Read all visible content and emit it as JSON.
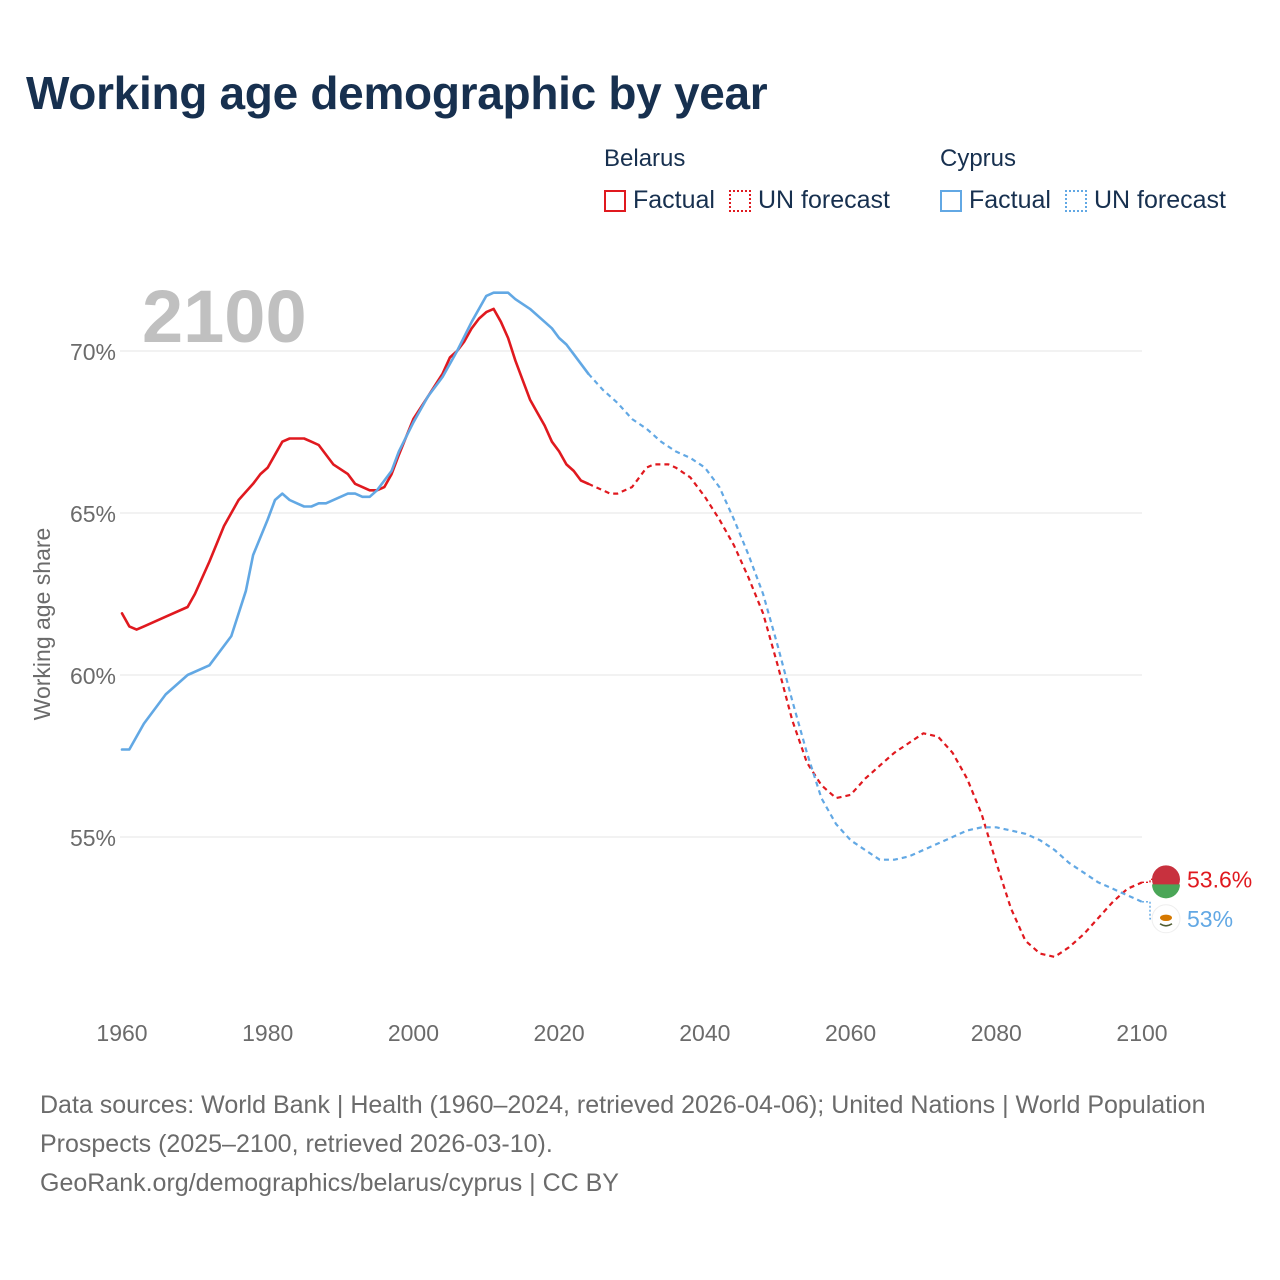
{
  "title": "Working age demographic by year",
  "legend": {
    "groups": [
      {
        "name": "Belarus",
        "color": "#e0191f",
        "items": [
          {
            "label": "Factual",
            "style": "solid"
          },
          {
            "label": "UN forecast",
            "style": "dotted"
          }
        ]
      },
      {
        "name": "Cyprus",
        "color": "#62a8e4",
        "items": [
          {
            "label": "Factual",
            "style": "solid"
          },
          {
            "label": "UN forecast",
            "style": "dotted"
          }
        ]
      }
    ]
  },
  "year_watermark": "2100",
  "footer": {
    "sources": "Data sources: World Bank | Health (1960–2024, retrieved 2026-04-06); United Nations | World Population Prospects (2025–2100, retrieved 2026-03-10).",
    "link": "GeoRank.org/demographics/belarus/cyprus | CC BY"
  },
  "chart_data": {
    "type": "line",
    "title": "Working age demographic by year",
    "xlabel": "",
    "ylabel": "Working age share",
    "xlim": [
      1960,
      2100
    ],
    "ylim": [
      50.5,
      72
    ],
    "x_ticks": [
      1960,
      1980,
      2000,
      2020,
      2040,
      2060,
      2080,
      2100
    ],
    "y_ticks": [
      {
        "value": 55,
        "label": "55%"
      },
      {
        "value": 60,
        "label": "60%"
      },
      {
        "value": 65,
        "label": "65%"
      },
      {
        "value": 70,
        "label": "70%"
      }
    ],
    "grid": true,
    "factual_until": 2024,
    "series": [
      {
        "name": "Belarus",
        "color": "#e0191f",
        "end_label": "53.6%",
        "flag_colors": [
          "#c8313e",
          "#4aa657"
        ],
        "points": [
          [
            1960,
            61.9
          ],
          [
            1961,
            61.5
          ],
          [
            1962,
            61.4
          ],
          [
            1963,
            61.5
          ],
          [
            1966,
            61.8
          ],
          [
            1969,
            62.1
          ],
          [
            1970,
            62.5
          ],
          [
            1972,
            63.5
          ],
          [
            1974,
            64.6
          ],
          [
            1976,
            65.4
          ],
          [
            1978,
            65.9
          ],
          [
            1979,
            66.2
          ],
          [
            1980,
            66.4
          ],
          [
            1981,
            66.8
          ],
          [
            1982,
            67.2
          ],
          [
            1983,
            67.3
          ],
          [
            1985,
            67.3
          ],
          [
            1986,
            67.2
          ],
          [
            1987,
            67.1
          ],
          [
            1989,
            66.5
          ],
          [
            1991,
            66.2
          ],
          [
            1992,
            65.9
          ],
          [
            1994,
            65.7
          ],
          [
            1995,
            65.7
          ],
          [
            1996,
            65.8
          ],
          [
            1997,
            66.2
          ],
          [
            1998,
            66.8
          ],
          [
            2000,
            67.9
          ],
          [
            2002,
            68.6
          ],
          [
            2004,
            69.3
          ],
          [
            2005,
            69.8
          ],
          [
            2006,
            70.0
          ],
          [
            2007,
            70.3
          ],
          [
            2008,
            70.7
          ],
          [
            2009,
            71.0
          ],
          [
            2010,
            71.2
          ],
          [
            2011,
            71.3
          ],
          [
            2012,
            70.9
          ],
          [
            2013,
            70.4
          ],
          [
            2014,
            69.7
          ],
          [
            2015,
            69.1
          ],
          [
            2016,
            68.5
          ],
          [
            2017,
            68.1
          ],
          [
            2018,
            67.7
          ],
          [
            2019,
            67.2
          ],
          [
            2020,
            66.9
          ],
          [
            2021,
            66.5
          ],
          [
            2022,
            66.3
          ],
          [
            2023,
            66.0
          ],
          [
            2024,
            65.9
          ],
          [
            2025,
            65.8
          ],
          [
            2026,
            65.7
          ],
          [
            2027,
            65.6
          ],
          [
            2028,
            65.6
          ],
          [
            2030,
            65.8
          ],
          [
            2031,
            66.1
          ],
          [
            2032,
            66.4
          ],
          [
            2033,
            66.5
          ],
          [
            2035,
            66.5
          ],
          [
            2036,
            66.4
          ],
          [
            2038,
            66.1
          ],
          [
            2040,
            65.5
          ],
          [
            2042,
            64.8
          ],
          [
            2044,
            64.0
          ],
          [
            2046,
            63.0
          ],
          [
            2048,
            61.9
          ],
          [
            2050,
            60.3
          ],
          [
            2052,
            58.6
          ],
          [
            2054,
            57.3
          ],
          [
            2056,
            56.6
          ],
          [
            2058,
            56.2
          ],
          [
            2060,
            56.3
          ],
          [
            2062,
            56.8
          ],
          [
            2064,
            57.2
          ],
          [
            2066,
            57.6
          ],
          [
            2068,
            57.9
          ],
          [
            2070,
            58.2
          ],
          [
            2072,
            58.1
          ],
          [
            2074,
            57.6
          ],
          [
            2076,
            56.8
          ],
          [
            2078,
            55.7
          ],
          [
            2080,
            54.2
          ],
          [
            2082,
            52.8
          ],
          [
            2084,
            51.8
          ],
          [
            2086,
            51.4
          ],
          [
            2088,
            51.3
          ],
          [
            2090,
            51.6
          ],
          [
            2092,
            52.0
          ],
          [
            2094,
            52.5
          ],
          [
            2096,
            53.0
          ],
          [
            2098,
            53.4
          ],
          [
            2100,
            53.6
          ]
        ]
      },
      {
        "name": "Cyprus",
        "color": "#62a8e4",
        "end_label": "53%",
        "flag_colors": [
          "#ffffff",
          "#d57800",
          "#4e5b31"
        ],
        "points": [
          [
            1960,
            57.7
          ],
          [
            1961,
            57.7
          ],
          [
            1963,
            58.5
          ],
          [
            1966,
            59.4
          ],
          [
            1969,
            60.0
          ],
          [
            1972,
            60.3
          ],
          [
            1975,
            61.2
          ],
          [
            1977,
            62.6
          ],
          [
            1978,
            63.7
          ],
          [
            1980,
            64.8
          ],
          [
            1981,
            65.4
          ],
          [
            1982,
            65.6
          ],
          [
            1983,
            65.4
          ],
          [
            1984,
            65.3
          ],
          [
            1985,
            65.2
          ],
          [
            1986,
            65.2
          ],
          [
            1987,
            65.3
          ],
          [
            1988,
            65.3
          ],
          [
            1990,
            65.5
          ],
          [
            1991,
            65.6
          ],
          [
            1992,
            65.6
          ],
          [
            1993,
            65.5
          ],
          [
            1994,
            65.5
          ],
          [
            1995,
            65.7
          ],
          [
            1997,
            66.3
          ],
          [
            1998,
            66.9
          ],
          [
            2000,
            67.8
          ],
          [
            2002,
            68.6
          ],
          [
            2004,
            69.2
          ],
          [
            2006,
            70.0
          ],
          [
            2008,
            70.9
          ],
          [
            2010,
            71.7
          ],
          [
            2011,
            71.8
          ],
          [
            2013,
            71.8
          ],
          [
            2014,
            71.6
          ],
          [
            2016,
            71.3
          ],
          [
            2018,
            70.9
          ],
          [
            2019,
            70.7
          ],
          [
            2020,
            70.4
          ],
          [
            2021,
            70.2
          ],
          [
            2022,
            69.9
          ],
          [
            2024,
            69.3
          ],
          [
            2026,
            68.8
          ],
          [
            2028,
            68.4
          ],
          [
            2030,
            67.9
          ],
          [
            2032,
            67.6
          ],
          [
            2034,
            67.2
          ],
          [
            2036,
            66.9
          ],
          [
            2038,
            66.7
          ],
          [
            2040,
            66.4
          ],
          [
            2042,
            65.8
          ],
          [
            2044,
            64.8
          ],
          [
            2046,
            63.7
          ],
          [
            2048,
            62.5
          ],
          [
            2050,
            60.9
          ],
          [
            2052,
            59.2
          ],
          [
            2054,
            57.6
          ],
          [
            2056,
            56.2
          ],
          [
            2058,
            55.4
          ],
          [
            2060,
            54.9
          ],
          [
            2062,
            54.6
          ],
          [
            2064,
            54.3
          ],
          [
            2066,
            54.3
          ],
          [
            2068,
            54.4
          ],
          [
            2070,
            54.6
          ],
          [
            2072,
            54.8
          ],
          [
            2074,
            55.0
          ],
          [
            2076,
            55.2
          ],
          [
            2078,
            55.3
          ],
          [
            2080,
            55.3
          ],
          [
            2082,
            55.2
          ],
          [
            2084,
            55.1
          ],
          [
            2086,
            54.9
          ],
          [
            2088,
            54.6
          ],
          [
            2090,
            54.2
          ],
          [
            2092,
            53.9
          ],
          [
            2094,
            53.6
          ],
          [
            2096,
            53.4
          ],
          [
            2098,
            53.2
          ],
          [
            2100,
            53.0
          ]
        ]
      }
    ]
  }
}
